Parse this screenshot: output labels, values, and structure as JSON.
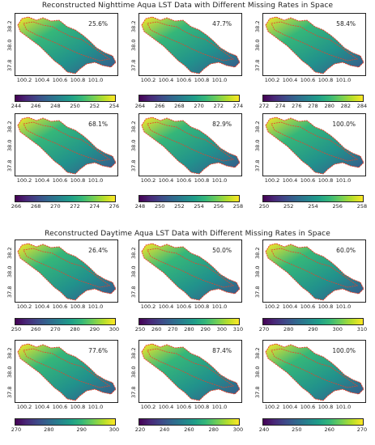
{
  "night": {
    "title": "Reconstructed Nighttime Aqua LST Data with Different Missing Rates in Space",
    "panels": [
      {
        "rate": "25.6%",
        "cbar": [
          "244",
          "246",
          "248",
          "250",
          "252",
          "254"
        ]
      },
      {
        "rate": "47.7%",
        "cbar": [
          "264",
          "266",
          "268",
          "270",
          "272",
          "274"
        ]
      },
      {
        "rate": "58.4%",
        "cbar": [
          "272",
          "274",
          "276",
          "278",
          "280",
          "282",
          "284"
        ]
      },
      {
        "rate": "68.1%",
        "cbar": [
          "266",
          "268",
          "270",
          "272",
          "274",
          "276"
        ]
      },
      {
        "rate": "82.9%",
        "cbar": [
          "248",
          "250",
          "252",
          "254",
          "256",
          "258"
        ]
      },
      {
        "rate": "100.0%",
        "cbar": [
          "250",
          "252",
          "254",
          "256",
          "258"
        ]
      }
    ]
  },
  "day": {
    "title": "Reconstructed Daytime Aqua LST Data with Different Missing Rates in Space",
    "panels": [
      {
        "rate": "26.4%",
        "cbar": [
          "250",
          "260",
          "270",
          "280",
          "290",
          "300"
        ]
      },
      {
        "rate": "50.0%",
        "cbar": [
          "250",
          "260",
          "270",
          "280",
          "290",
          "300",
          "310"
        ]
      },
      {
        "rate": "60.0%",
        "cbar": [
          "270",
          "280",
          "290",
          "300",
          "310"
        ]
      },
      {
        "rate": "77.6%",
        "cbar": [
          "270",
          "280",
          "290",
          "300"
        ]
      },
      {
        "rate": "87.4%",
        "cbar": [
          "220",
          "240",
          "260",
          "280",
          "300"
        ]
      },
      {
        "rate": "100.0%",
        "cbar": [
          "240",
          "250",
          "260",
          "270"
        ]
      }
    ]
  },
  "axes": {
    "yticks": [
      "38.2",
      "38.0",
      "37.8"
    ],
    "xticks": [
      "100.2",
      "100.4",
      "100.6",
      "100.8",
      "101.0"
    ]
  },
  "colors": {
    "map_low": "#440154",
    "map_high": "#fde725",
    "study_boundary": "#e8402a",
    "frame": "#222222"
  }
}
